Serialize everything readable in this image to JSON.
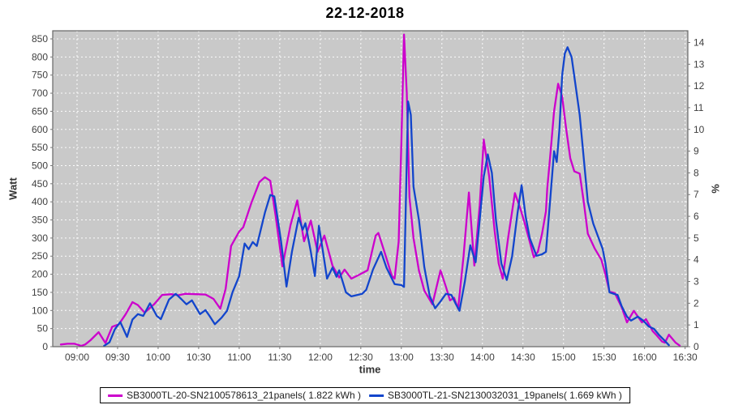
{
  "title": "22-12-2018",
  "colors": {
    "series1": "#CC00CC",
    "series2": "#1245CC",
    "plot_background": "#C9C9C9",
    "gridline": "#FFFFFF",
    "plot_border": "#666666",
    "tick_text": "#3F3F3F"
  },
  "chart_data": {
    "type": "line",
    "title": "22-12-2018",
    "xlabel": "time",
    "ylabel_left": "Watt",
    "ylabel_right": "%",
    "grid": true,
    "legend_position": "bottom",
    "x_range": [
      "08:42",
      "16:32"
    ],
    "ylim_left": [
      0,
      872
    ],
    "ylim_right": [
      0,
      14.5
    ],
    "x_ticks": [
      "09:00",
      "09:30",
      "10:00",
      "10:30",
      "11:00",
      "11:30",
      "12:00",
      "12:30",
      "13:00",
      "13:30",
      "14:00",
      "14:30",
      "15:00",
      "15:30",
      "16:00",
      "16:30"
    ],
    "y_left_ticks": [
      0,
      50,
      100,
      150,
      200,
      250,
      300,
      350,
      400,
      450,
      500,
      550,
      600,
      650,
      700,
      750,
      800,
      850
    ],
    "y_right_ticks": [
      0,
      1,
      2,
      3,
      4,
      5,
      6,
      7,
      8,
      9,
      10,
      11,
      12,
      13,
      14
    ],
    "watts_per_right_percent": 60,
    "series": [
      {
        "name": "SB3000TL-20-SN2100578613_21panels( 1.822 kWh )",
        "color": "#CC00CC",
        "energy_kwh": "1.822",
        "points": [
          [
            "08:48",
            6
          ],
          [
            "08:53",
            8
          ],
          [
            "08:58",
            8
          ],
          [
            "09:01",
            5
          ],
          [
            "09:03",
            2
          ],
          [
            "09:06",
            6
          ],
          [
            "09:10",
            18
          ],
          [
            "09:16",
            40
          ],
          [
            "09:21",
            10
          ],
          [
            "09:26",
            55
          ],
          [
            "09:31",
            62
          ],
          [
            "09:36",
            90
          ],
          [
            "09:41",
            123
          ],
          [
            "09:45",
            115
          ],
          [
            "09:50",
            94
          ],
          [
            "09:57",
            117
          ],
          [
            "10:03",
            143
          ],
          [
            "10:10",
            145
          ],
          [
            "10:15",
            142
          ],
          [
            "10:20",
            146
          ],
          [
            "10:28",
            145
          ],
          [
            "10:35",
            144
          ],
          [
            "10:41",
            132
          ],
          [
            "10:46",
            105
          ],
          [
            "10:50",
            160
          ],
          [
            "10:54",
            278
          ],
          [
            "11:00",
            318
          ],
          [
            "11:03",
            330
          ],
          [
            "11:09",
            397
          ],
          [
            "11:15",
            455
          ],
          [
            "11:19",
            468
          ],
          [
            "11:23",
            458
          ],
          [
            "11:27",
            360
          ],
          [
            "11:32",
            222
          ],
          [
            "11:38",
            336
          ],
          [
            "11:43",
            404
          ],
          [
            "11:48",
            291
          ],
          [
            "11:53",
            348
          ],
          [
            "11:58",
            262
          ],
          [
            "12:03",
            307
          ],
          [
            "12:09",
            224
          ],
          [
            "12:14",
            191
          ],
          [
            "12:18",
            213
          ],
          [
            "12:23",
            188
          ],
          [
            "12:29",
            199
          ],
          [
            "12:35",
            211
          ],
          [
            "12:41",
            307
          ],
          [
            "12:43",
            314
          ],
          [
            "12:48",
            256
          ],
          [
            "12:53",
            195
          ],
          [
            "12:55",
            188
          ],
          [
            "12:58",
            290
          ],
          [
            "13:00",
            560
          ],
          [
            "13:02",
            862
          ],
          [
            "13:04",
            700
          ],
          [
            "13:06",
            413
          ],
          [
            "13:09",
            300
          ],
          [
            "13:13",
            210
          ],
          [
            "13:17",
            155
          ],
          [
            "13:23",
            117
          ],
          [
            "13:29",
            211
          ],
          [
            "13:33",
            165
          ],
          [
            "13:36",
            128
          ],
          [
            "13:39",
            135
          ],
          [
            "13:42",
            105
          ],
          [
            "13:46",
            250
          ],
          [
            "13:50",
            426
          ],
          [
            "13:54",
            224
          ],
          [
            "13:58",
            390
          ],
          [
            "14:01",
            572
          ],
          [
            "14:05",
            470
          ],
          [
            "14:09",
            320
          ],
          [
            "14:12",
            230
          ],
          [
            "14:15",
            188
          ],
          [
            "14:19",
            300
          ],
          [
            "14:24",
            424
          ],
          [
            "14:28",
            382
          ],
          [
            "14:31",
            345
          ],
          [
            "14:35",
            290
          ],
          [
            "14:38",
            247
          ],
          [
            "14:41",
            262
          ],
          [
            "14:44",
            310
          ],
          [
            "14:47",
            374
          ],
          [
            "14:48",
            437
          ],
          [
            "14:50",
            520
          ],
          [
            "14:53",
            650
          ],
          [
            "14:56",
            726
          ],
          [
            "14:59",
            690
          ],
          [
            "15:02",
            600
          ],
          [
            "15:05",
            520
          ],
          [
            "15:08",
            484
          ],
          [
            "15:12",
            478
          ],
          [
            "15:15",
            400
          ],
          [
            "15:18",
            312
          ],
          [
            "15:23",
            272
          ],
          [
            "15:28",
            240
          ],
          [
            "15:31",
            200
          ],
          [
            "15:34",
            152
          ],
          [
            "15:38",
            148
          ],
          [
            "15:43",
            109
          ],
          [
            "15:47",
            67
          ],
          [
            "15:52",
            99
          ],
          [
            "15:58",
            67
          ],
          [
            "16:01",
            76
          ],
          [
            "16:06",
            43
          ],
          [
            "16:09",
            31
          ],
          [
            "16:13",
            14
          ],
          [
            "16:15",
            11
          ],
          [
            "16:18",
            33
          ],
          [
            "16:23",
            11
          ],
          [
            "16:26",
            3
          ]
        ]
      },
      {
        "name": "SB3000TL-21-SN2130032031_19panels( 1.669 kWh )",
        "color": "#1245CC",
        "energy_kwh": "1.669",
        "points": [
          [
            "09:20",
            2
          ],
          [
            "09:24",
            12
          ],
          [
            "09:28",
            48
          ],
          [
            "09:32",
            68
          ],
          [
            "09:37",
            27
          ],
          [
            "09:41",
            75
          ],
          [
            "09:45",
            90
          ],
          [
            "09:49",
            85
          ],
          [
            "09:54",
            120
          ],
          [
            "09:59",
            85
          ],
          [
            "10:02",
            76
          ],
          [
            "10:08",
            130
          ],
          [
            "10:13",
            146
          ],
          [
            "10:17",
            132
          ],
          [
            "10:21",
            117
          ],
          [
            "10:25",
            128
          ],
          [
            "10:31",
            90
          ],
          [
            "10:35",
            101
          ],
          [
            "10:38",
            85
          ],
          [
            "10:42",
            62
          ],
          [
            "10:47",
            80
          ],
          [
            "10:51",
            99
          ],
          [
            "10:55",
            150
          ],
          [
            "11:00",
            195
          ],
          [
            "11:04",
            285
          ],
          [
            "11:07",
            269
          ],
          [
            "11:10",
            289
          ],
          [
            "11:13",
            278
          ],
          [
            "11:19",
            370
          ],
          [
            "11:23",
            419
          ],
          [
            "11:26",
            415
          ],
          [
            "11:31",
            291
          ],
          [
            "11:35",
            166
          ],
          [
            "11:39",
            262
          ],
          [
            "11:44",
            356
          ],
          [
            "11:47",
            323
          ],
          [
            "11:49",
            341
          ],
          [
            "11:53",
            262
          ],
          [
            "11:56",
            195
          ],
          [
            "11:59",
            334
          ],
          [
            "12:02",
            262
          ],
          [
            "12:05",
            188
          ],
          [
            "12:09",
            218
          ],
          [
            "12:12",
            193
          ],
          [
            "12:14",
            211
          ],
          [
            "12:19",
            150
          ],
          [
            "12:23",
            139
          ],
          [
            "12:31",
            146
          ],
          [
            "12:34",
            157
          ],
          [
            "12:39",
            213
          ],
          [
            "12:45",
            262
          ],
          [
            "12:49",
            218
          ],
          [
            "12:55",
            173
          ],
          [
            "13:00",
            170
          ],
          [
            "13:02",
            165
          ],
          [
            "13:05",
            677
          ],
          [
            "13:07",
            640
          ],
          [
            "13:09",
            442
          ],
          [
            "13:13",
            350
          ],
          [
            "13:17",
            220
          ],
          [
            "13:21",
            140
          ],
          [
            "13:25",
            106
          ],
          [
            "13:29",
            125
          ],
          [
            "13:33",
            146
          ],
          [
            "13:37",
            143
          ],
          [
            "13:40",
            120
          ],
          [
            "13:43",
            99
          ],
          [
            "13:47",
            180
          ],
          [
            "13:51",
            280
          ],
          [
            "13:55",
            233
          ],
          [
            "13:58",
            350
          ],
          [
            "14:01",
            470
          ],
          [
            "14:04",
            531
          ],
          [
            "14:07",
            480
          ],
          [
            "14:10",
            350
          ],
          [
            "14:14",
            230
          ],
          [
            "14:18",
            184
          ],
          [
            "14:22",
            250
          ],
          [
            "14:26",
            370
          ],
          [
            "14:29",
            446
          ],
          [
            "14:32",
            359
          ],
          [
            "14:35",
            300
          ],
          [
            "14:40",
            251
          ],
          [
            "14:44",
            255
          ],
          [
            "14:47",
            262
          ],
          [
            "14:50",
            400
          ],
          [
            "14:53",
            540
          ],
          [
            "14:55",
            510
          ],
          [
            "14:57",
            600
          ],
          [
            "14:59",
            750
          ],
          [
            "15:01",
            810
          ],
          [
            "15:03",
            827
          ],
          [
            "15:06",
            800
          ],
          [
            "15:09",
            720
          ],
          [
            "15:12",
            640
          ],
          [
            "15:15",
            520
          ],
          [
            "15:18",
            400
          ],
          [
            "15:22",
            340
          ],
          [
            "15:26",
            300
          ],
          [
            "15:29",
            270
          ],
          [
            "15:31",
            230
          ],
          [
            "15:34",
            150
          ],
          [
            "15:37",
            146
          ],
          [
            "15:40",
            143
          ],
          [
            "15:43",
            112
          ],
          [
            "15:47",
            83
          ],
          [
            "15:50",
            72
          ],
          [
            "15:55",
            83
          ],
          [
            "15:59",
            72
          ],
          [
            "16:03",
            56
          ],
          [
            "16:07",
            49
          ],
          [
            "16:11",
            31
          ],
          [
            "16:15",
            16
          ],
          [
            "16:18",
            4
          ]
        ]
      }
    ]
  }
}
